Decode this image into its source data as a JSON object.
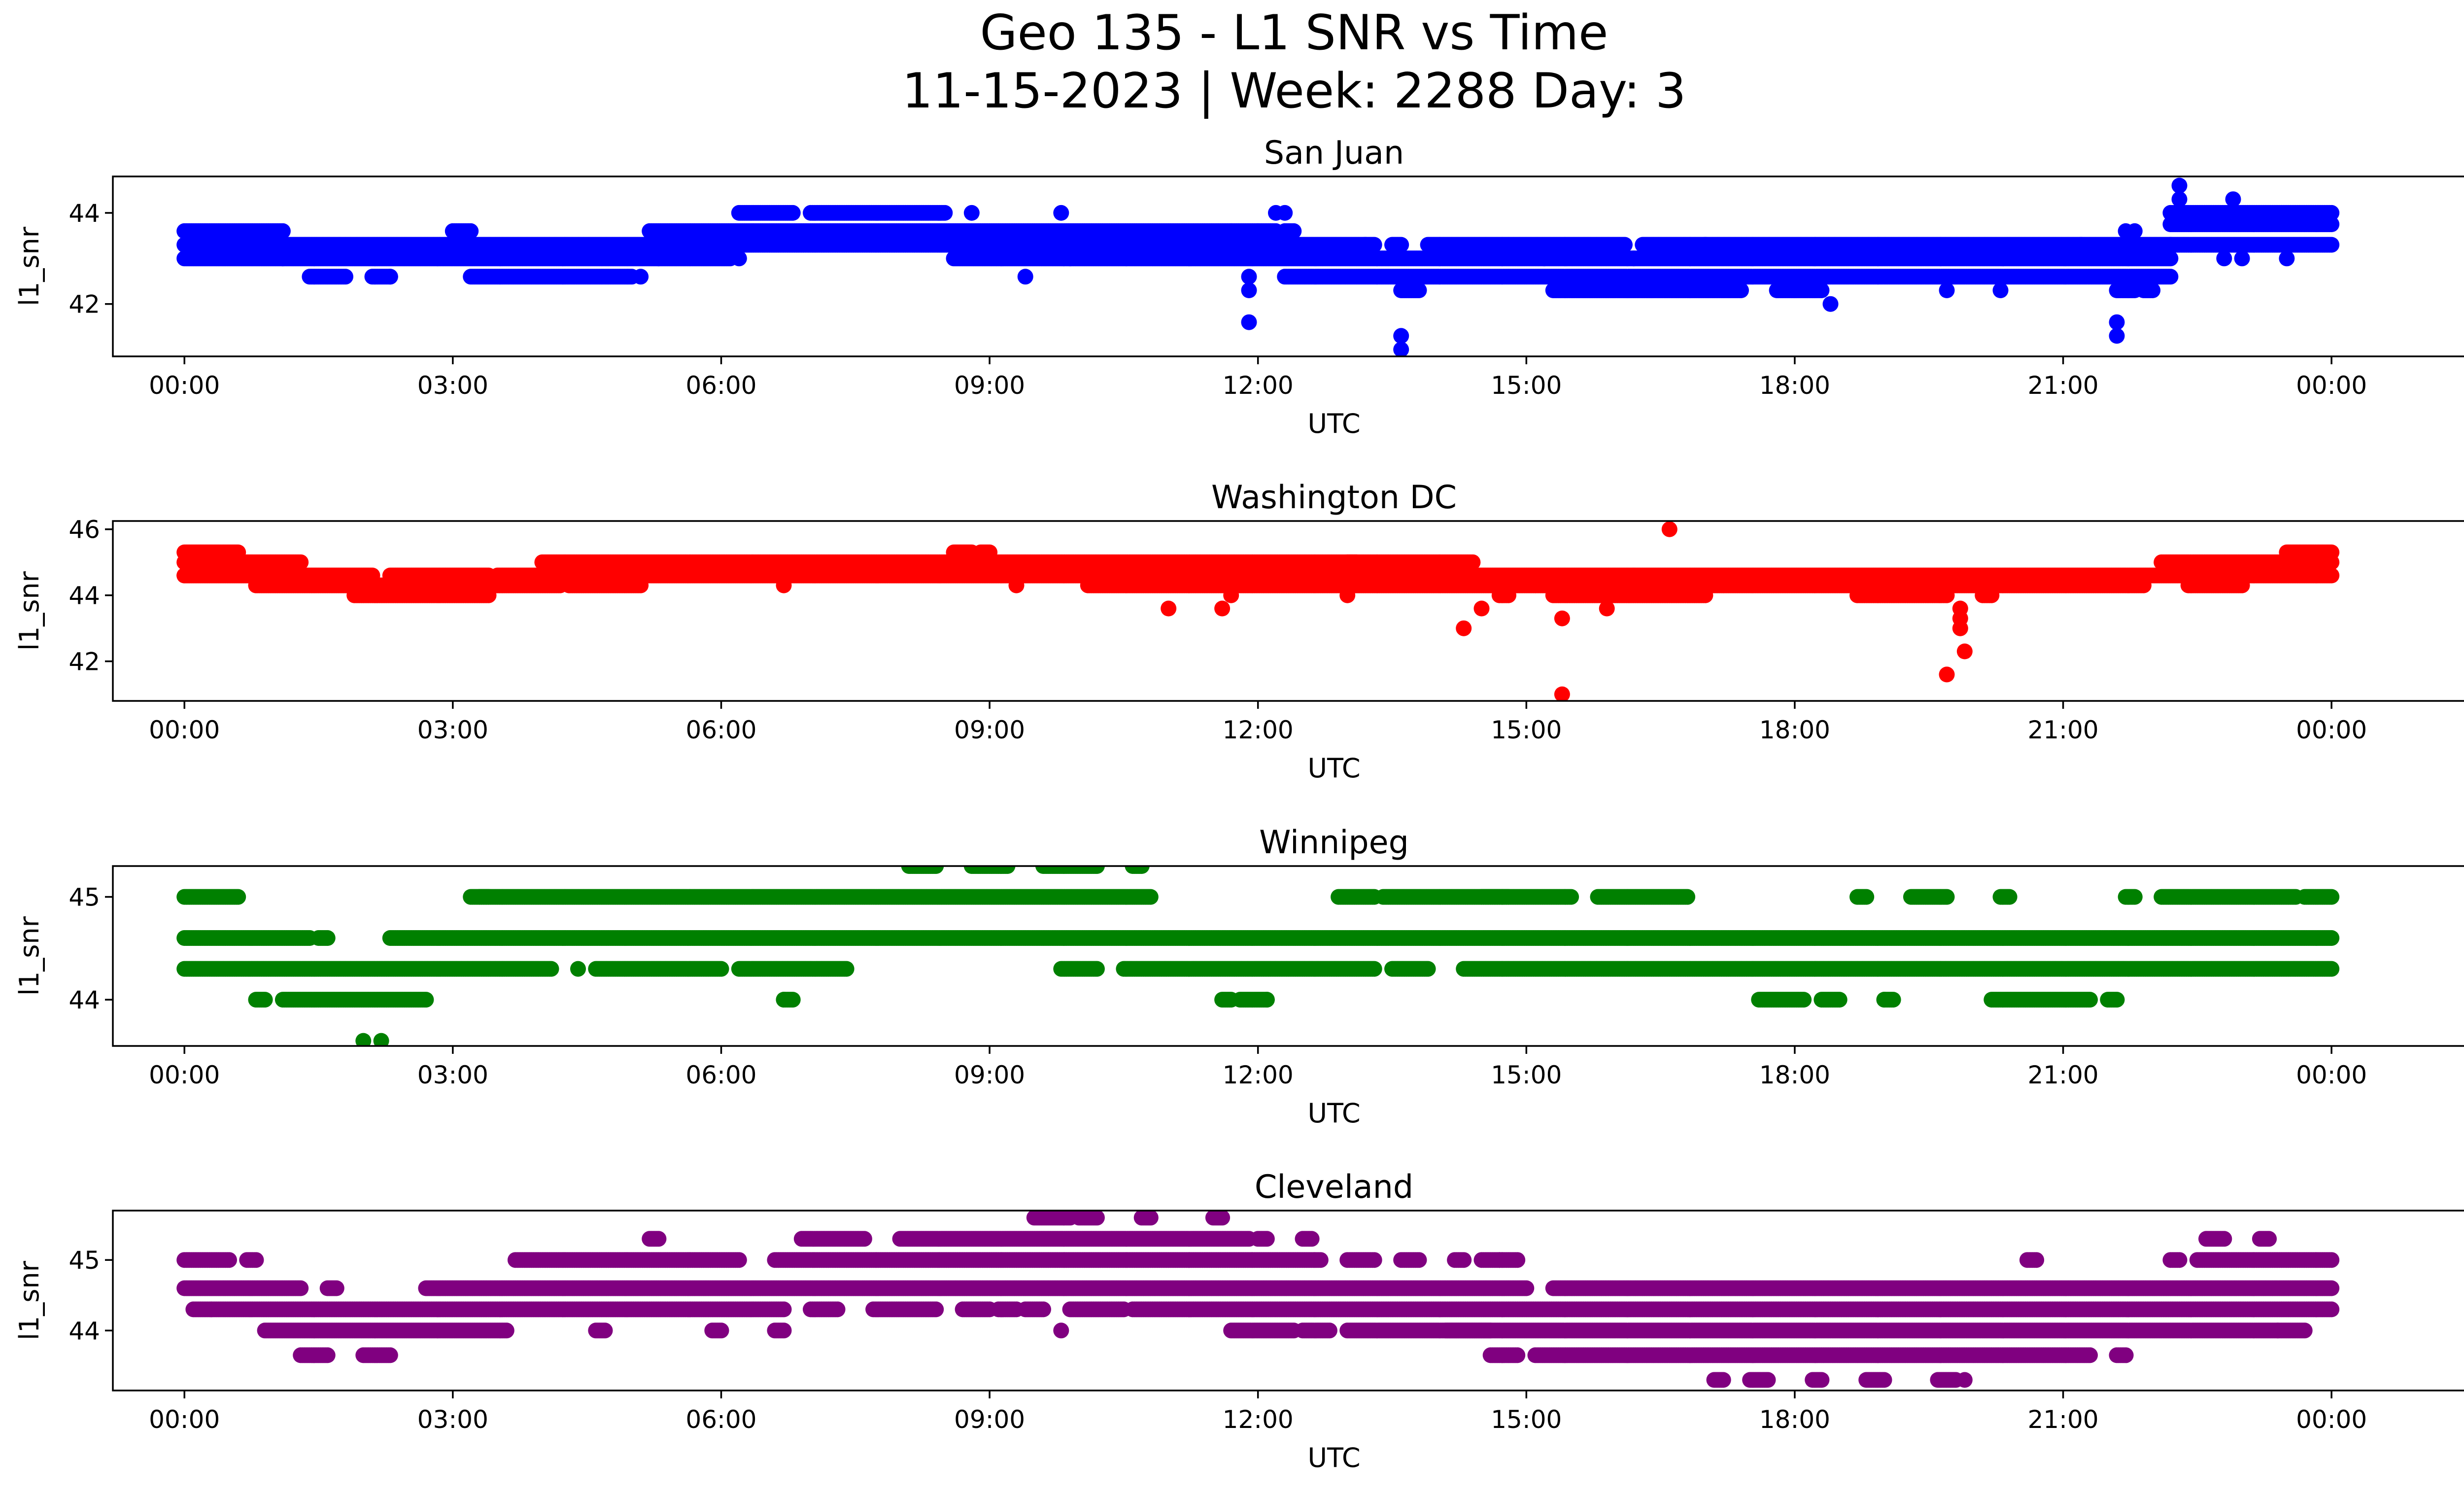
{
  "figure": {
    "title_line1": "Geo 135 - L1 SNR vs Time",
    "title_line2": "11-15-2023 | Week: 2288 Day: 3"
  },
  "chart_data": [
    {
      "type": "scatter",
      "title": "San Juan",
      "xlabel": "UTC",
      "ylabel": "l1_snr",
      "color": "#0000ff",
      "xlim": [
        -0.8,
        26.5
      ],
      "ylim": [
        40.85,
        44.8
      ],
      "x_tick_values": [
        0,
        3,
        6,
        9,
        12,
        15,
        18,
        21,
        24
      ],
      "x_tick_labels": [
        "00:00",
        "03:00",
        "06:00",
        "09:00",
        "12:00",
        "15:00",
        "18:00",
        "21:00",
        "00:00"
      ],
      "y_ticks": [
        42,
        44
      ],
      "bands": [
        {
          "y": 43.6,
          "segments": [
            [
              0,
              1.1
            ],
            [
              3.0,
              3.2
            ],
            [
              5.2,
              12.2
            ],
            [
              12.3,
              12.4
            ]
          ]
        },
        {
          "y": 43.3,
          "segments": [
            [
              0,
              11.1
            ],
            [
              11.1,
              13.3
            ],
            [
              13.5,
              13.6
            ],
            [
              13.9,
              16.1
            ],
            [
              16.3,
              21.2
            ],
            [
              21.2,
              22.2
            ],
            [
              22.2,
              24
            ]
          ]
        },
        {
          "y": 43.0,
          "segments": [
            [
              0,
              1.1
            ],
            [
              1.1,
              5.3
            ],
            [
              5.3,
              6.1
            ],
            [
              8.6,
              9.9
            ],
            [
              9.9,
              16.2
            ],
            [
              16.2,
              22.2
            ]
          ]
        },
        {
          "y": 42.6,
          "segments": [
            [
              1.4,
              1.8
            ],
            [
              2.1,
              2.3
            ],
            [
              3.2,
              5.0
            ],
            [
              12.3,
              22.2
            ]
          ]
        },
        {
          "y": 42.3,
          "segments": [
            [
              13.6,
              13.8
            ],
            [
              15.3,
              16.4
            ],
            [
              16.4,
              17.4
            ],
            [
              17.8,
              18.3
            ],
            [
              21.6,
              21.8
            ],
            [
              21.9,
              22.0
            ]
          ]
        },
        {
          "y": 44.0,
          "segments": [
            [
              6.2,
              6.8
            ],
            [
              7.0,
              8.5
            ],
            [
              22.2,
              24
            ]
          ]
        },
        {
          "y": 43.75,
          "segments": [
            [
              22.2,
              24
            ]
          ]
        }
      ],
      "points": [
        [
          11.9,
          42.6
        ],
        [
          11.9,
          42.3
        ],
        [
          11.9,
          41.6
        ],
        [
          13.6,
          41.3
        ],
        [
          13.6,
          41.0
        ],
        [
          18.4,
          42.0
        ],
        [
          21.6,
          41.6
        ],
        [
          21.6,
          41.3
        ],
        [
          22.3,
          44.6
        ],
        [
          22.3,
          44.3
        ],
        [
          22.9,
          44.3
        ],
        [
          9.8,
          44.0
        ],
        [
          8.8,
          44.0
        ],
        [
          12.3,
          44.0
        ],
        [
          12.2,
          44.0
        ],
        [
          9.4,
          42.6
        ],
        [
          6.2,
          43.0
        ],
        [
          5.1,
          42.6
        ],
        [
          2.3,
          42.6
        ],
        [
          23.0,
          43.0
        ],
        [
          23.5,
          43.0
        ],
        [
          21.8,
          43.6
        ],
        [
          21.7,
          43.6
        ],
        [
          12.0,
          43.6
        ],
        [
          11.7,
          43.6
        ],
        [
          12.1,
          43.3
        ],
        [
          13.2,
          43.3
        ],
        [
          15.2,
          43.0
        ],
        [
          19.7,
          42.3
        ],
        [
          20.3,
          42.3
        ],
        [
          22.8,
          43.0
        ],
        [
          17.0,
          43.3
        ],
        [
          18.0,
          42.3
        ]
      ]
    },
    {
      "type": "scatter",
      "title": "Washington DC",
      "xlabel": "UTC",
      "ylabel": "l1_snr",
      "color": "#ff0000",
      "xlim": [
        -0.8,
        26.5
      ],
      "ylim": [
        40.8,
        46.25
      ],
      "x_tick_values": [
        0,
        3,
        6,
        9,
        12,
        15,
        18,
        21,
        24
      ],
      "x_tick_labels": [
        "00:00",
        "03:00",
        "06:00",
        "09:00",
        "12:00",
        "15:00",
        "18:00",
        "21:00",
        "00:00"
      ],
      "y_ticks": [
        42,
        44,
        46
      ],
      "bands": [
        {
          "y": 45.3,
          "segments": [
            [
              0,
              0.6
            ],
            [
              8.6,
              8.8
            ],
            [
              8.9,
              9.0
            ],
            [
              23.5,
              24
            ]
          ]
        },
        {
          "y": 45.0,
          "segments": [
            [
              0,
              1.3
            ],
            [
              4.0,
              13.1
            ],
            [
              13.0,
              14.4
            ],
            [
              22.1,
              24
            ]
          ]
        },
        {
          "y": 44.6,
          "segments": [
            [
              0,
              2.1
            ],
            [
              2.3,
              3.4
            ],
            [
              3.5,
              16.2
            ],
            [
              16.2,
              22.7
            ],
            [
              22.7,
              24
            ]
          ]
        },
        {
          "y": 44.3,
          "segments": [
            [
              0.8,
              3.3
            ],
            [
              3.3,
              4.2
            ],
            [
              4.3,
              5.1
            ],
            [
              10.1,
              15.1
            ],
            [
              15.1,
              17.2
            ],
            [
              17.2,
              21.9
            ],
            [
              22.4,
              23.0
            ]
          ]
        },
        {
          "y": 44.0,
          "segments": [
            [
              1.9,
              3.4
            ],
            [
              14.7,
              14.8
            ],
            [
              15.3,
              17.0
            ],
            [
              18.7,
              19.7
            ],
            [
              20.1,
              20.2
            ]
          ]
        }
      ],
      "points": [
        [
          0,
          44.6
        ],
        [
          11.0,
          43.6
        ],
        [
          11.6,
          43.6
        ],
        [
          14.3,
          43.0
        ],
        [
          14.5,
          43.6
        ],
        [
          15.4,
          43.3
        ],
        [
          15.4,
          41.0
        ],
        [
          15.9,
          43.6
        ],
        [
          16.6,
          46.0
        ],
        [
          19.7,
          41.6
        ],
        [
          19.9,
          42.3
        ],
        [
          19.85,
          43.0
        ],
        [
          19.85,
          43.3
        ],
        [
          19.85,
          43.6
        ],
        [
          13.0,
          44.0
        ],
        [
          6.7,
          44.3
        ],
        [
          9.3,
          44.3
        ],
        [
          11.7,
          44.0
        ]
      ]
    },
    {
      "type": "scatter",
      "title": "Winnipeg",
      "xlabel": "UTC",
      "ylabel": "l1_snr",
      "color": "#008000",
      "xlim": [
        -0.8,
        26.5
      ],
      "ylim": [
        43.55,
        45.3
      ],
      "x_tick_values": [
        0,
        3,
        6,
        9,
        12,
        15,
        18,
        21,
        24
      ],
      "x_tick_labels": [
        "00:00",
        "03:00",
        "06:00",
        "09:00",
        "12:00",
        "15:00",
        "18:00",
        "21:00",
        "00:00"
      ],
      "y_ticks": [
        44,
        45
      ],
      "bands": [
        {
          "y": 45.3,
          "segments": [
            [
              8.1,
              8.4
            ],
            [
              8.8,
              9.2
            ],
            [
              9.6,
              10.2
            ],
            [
              10.6,
              10.7
            ]
          ]
        },
        {
          "y": 45.0,
          "segments": [
            [
              0,
              0.6
            ],
            [
              3.2,
              3.4
            ],
            [
              3.3,
              10.8
            ],
            [
              12.9,
              13.3
            ],
            [
              13.4,
              14.8
            ],
            [
              14.5,
              15.5
            ],
            [
              15.8,
              16.8
            ],
            [
              18.7,
              18.8
            ],
            [
              19.3,
              19.7
            ],
            [
              20.3,
              20.4
            ],
            [
              21.7,
              21.8
            ],
            [
              22.1,
              23.6
            ],
            [
              23.7,
              24
            ]
          ]
        },
        {
          "y": 44.6,
          "segments": [
            [
              0,
              1.4
            ],
            [
              1.5,
              1.6
            ],
            [
              2.3,
              24
            ]
          ]
        },
        {
          "y": 44.3,
          "segments": [
            [
              0,
              4.1
            ],
            [
              4.6,
              6.0
            ],
            [
              6.2,
              7.4
            ],
            [
              9.8,
              10.2
            ],
            [
              10.5,
              13.3
            ],
            [
              13.5,
              13.9
            ],
            [
              14.3,
              24
            ]
          ]
        },
        {
          "y": 44.0,
          "segments": [
            [
              0.8,
              0.9
            ],
            [
              1.1,
              2.7
            ],
            [
              6.7,
              6.8
            ],
            [
              11.6,
              11.7
            ],
            [
              11.8,
              12.1
            ],
            [
              17.6,
              18.1
            ],
            [
              18.3,
              18.5
            ],
            [
              19.0,
              19.1
            ],
            [
              20.2,
              21.3
            ],
            [
              21.5,
              21.6
            ]
          ]
        }
      ],
      "points": [
        [
          2.0,
          43.6
        ],
        [
          2.2,
          43.6
        ],
        [
          4.4,
          44.3
        ],
        [
          6.7,
          44.0
        ],
        [
          12.1,
          44.0
        ],
        [
          19.0,
          44.0
        ]
      ]
    },
    {
      "type": "scatter",
      "title": "Cleveland",
      "xlabel": "UTC",
      "ylabel": "l1_snr",
      "color": "#800080",
      "xlim": [
        -0.8,
        26.5
      ],
      "ylim": [
        43.15,
        45.7
      ],
      "x_tick_values": [
        0,
        3,
        6,
        9,
        12,
        15,
        18,
        21,
        24
      ],
      "x_tick_labels": [
        "00:00",
        "03:00",
        "06:00",
        "09:00",
        "12:00",
        "15:00",
        "18:00",
        "21:00",
        "00:00"
      ],
      "y_ticks": [
        44,
        45
      ],
      "bands": [
        {
          "y": 45.6,
          "segments": [
            [
              9.5,
              9.9
            ],
            [
              10.0,
              10.2
            ],
            [
              10.7,
              10.8
            ],
            [
              11.5,
              11.6
            ]
          ]
        },
        {
          "y": 45.3,
          "segments": [
            [
              5.2,
              5.3
            ],
            [
              6.9,
              7.6
            ],
            [
              8.0,
              11.9
            ],
            [
              12.0,
              12.1
            ],
            [
              12.5,
              12.6
            ],
            [
              22.6,
              22.8
            ],
            [
              23.2,
              23.3
            ]
          ]
        },
        {
          "y": 45.0,
          "segments": [
            [
              0,
              0.5
            ],
            [
              0.7,
              0.8
            ],
            [
              3.7,
              6.2
            ],
            [
              6.6,
              12.7
            ],
            [
              13.0,
              13.3
            ],
            [
              13.6,
              13.8
            ],
            [
              14.2,
              14.3
            ],
            [
              14.5,
              14.7
            ],
            [
              14.7,
              14.9
            ],
            [
              20.6,
              20.7
            ],
            [
              22.2,
              22.3
            ],
            [
              22.5,
              24
            ]
          ]
        },
        {
          "y": 44.6,
          "segments": [
            [
              0,
              1.3
            ],
            [
              1.6,
              1.7
            ],
            [
              2.7,
              15.0
            ],
            [
              15.3,
              24
            ]
          ]
        },
        {
          "y": 44.3,
          "segments": [
            [
              0.1,
              0.3
            ],
            [
              0.3,
              6.7
            ],
            [
              7.0,
              7.3
            ],
            [
              7.7,
              8.4
            ],
            [
              8.7,
              9.0
            ],
            [
              9.1,
              9.3
            ],
            [
              9.4,
              9.6
            ],
            [
              9.9,
              10.5
            ],
            [
              10.6,
              24
            ]
          ]
        },
        {
          "y": 44.0,
          "segments": [
            [
              0.9,
              3.6
            ],
            [
              4.6,
              4.7
            ],
            [
              5.9,
              6.0
            ],
            [
              6.6,
              6.7
            ],
            [
              11.7,
              12.4
            ],
            [
              12.5,
              12.8
            ],
            [
              13.0,
              14.6
            ],
            [
              14.1,
              23.4
            ],
            [
              23.4,
              23.7
            ]
          ]
        },
        {
          "y": 43.65,
          "segments": [
            [
              1.3,
              1.6
            ],
            [
              2.0,
              2.3
            ],
            [
              14.6,
              14.9
            ],
            [
              15.1,
              21.3
            ],
            [
              21.6,
              21.7
            ]
          ]
        },
        {
          "y": 43.3,
          "segments": [
            [
              17.1,
              17.2
            ],
            [
              17.5,
              17.7
            ],
            [
              18.2,
              18.3
            ],
            [
              18.8,
              19.0
            ],
            [
              19.6,
              19.8
            ]
          ]
        }
      ],
      "points": [
        [
          9.8,
          44.0
        ],
        [
          19.9,
          43.3
        ]
      ]
    }
  ]
}
